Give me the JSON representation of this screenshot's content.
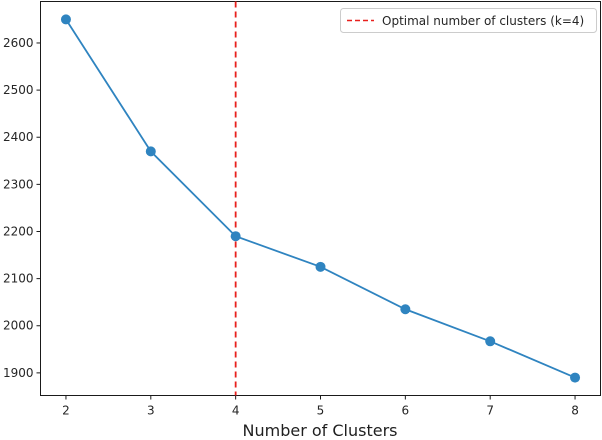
{
  "chart_data": {
    "type": "line",
    "x": [
      2,
      3,
      4,
      5,
      6,
      7,
      8
    ],
    "series": [
      {
        "values": [
          2650,
          2370,
          2190,
          2125,
          2035,
          1967,
          1890
        ],
        "color": "#2f84c0",
        "marker": "circle"
      }
    ],
    "xlabel": "Number of Clusters",
    "ylabel": "",
    "title": "",
    "xlim": [
      1.7,
      8.3
    ],
    "ylim": [
      1852,
      2688
    ],
    "xticks": [
      2,
      3,
      4,
      5,
      6,
      7,
      8
    ],
    "yticks": [
      1900,
      2000,
      2100,
      2200,
      2300,
      2400,
      2500,
      2600
    ],
    "grid": false,
    "annotations": [
      {
        "type": "vline",
        "x": 4,
        "color": "#e8201d",
        "style": "dashed",
        "label": "Optimal number of clusters (k=4)"
      }
    ],
    "legend": {
      "placement": "top-right",
      "entries": [
        "Optimal number of clusters (k=4)"
      ]
    }
  }
}
